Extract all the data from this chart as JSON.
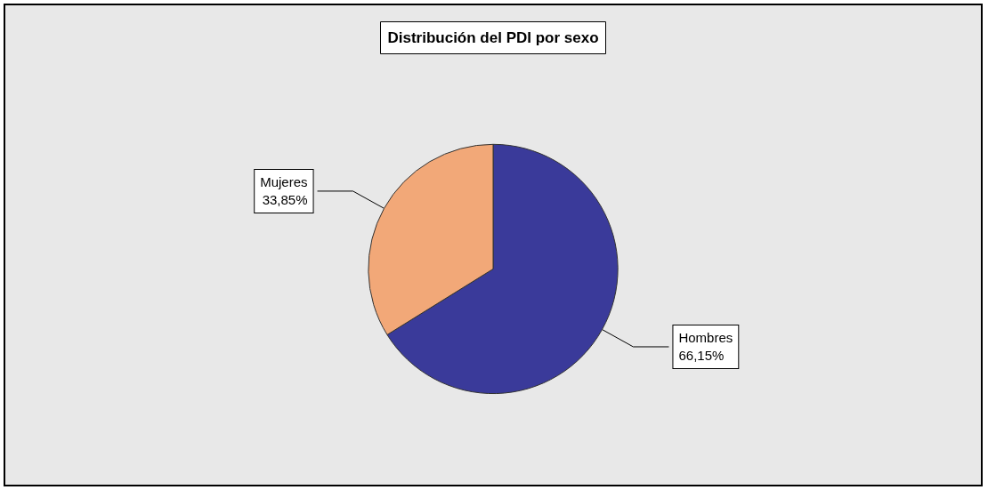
{
  "chart_data": {
    "type": "pie",
    "title": "Distribución del PDI por sexo",
    "categories": [
      "Hombres",
      "Mujeres"
    ],
    "values": [
      66.15,
      33.85
    ],
    "value_labels": [
      "66,15%",
      "33,85%"
    ],
    "colors": [
      "#3a3a9a",
      "#f2a878"
    ],
    "legend": false
  }
}
